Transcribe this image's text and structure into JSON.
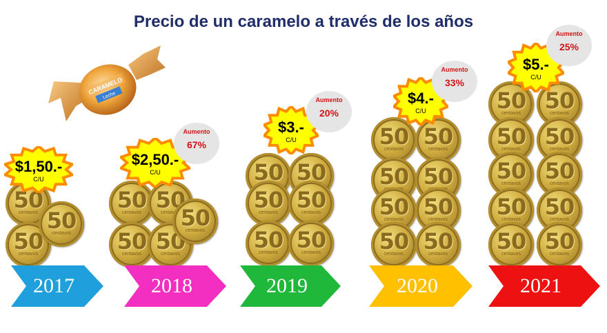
{
  "title": "Precio de un caramelo a través de los años",
  "candy": {
    "label": "CARAMELO",
    "flavor": "Leche"
  },
  "coin_value": "50",
  "coin_unit": "centavos",
  "unit_label": "C/U",
  "increase_label": "Aumento",
  "years": [
    {
      "year": "2017",
      "price": "$1,50.-",
      "increase": null,
      "arrow_color": "#1fa0dc"
    },
    {
      "year": "2018",
      "price": "$2,50.-",
      "increase": "67%",
      "arrow_color": "#f22fc0"
    },
    {
      "year": "2019",
      "price": "$3.-",
      "increase": "20%",
      "arrow_color": "#1fb83a"
    },
    {
      "year": "2020",
      "price": "$4.-",
      "increase": "33%",
      "arrow_color": "#ffc000"
    },
    {
      "year": "2021",
      "price": "$5.-",
      "increase": "25%",
      "arrow_color": "#ee1111"
    }
  ],
  "colors": {
    "title": "#1f2d6b",
    "burst": "#ffff00",
    "burst_edge": "#ff8c00",
    "increase_text": "#d01414"
  }
}
